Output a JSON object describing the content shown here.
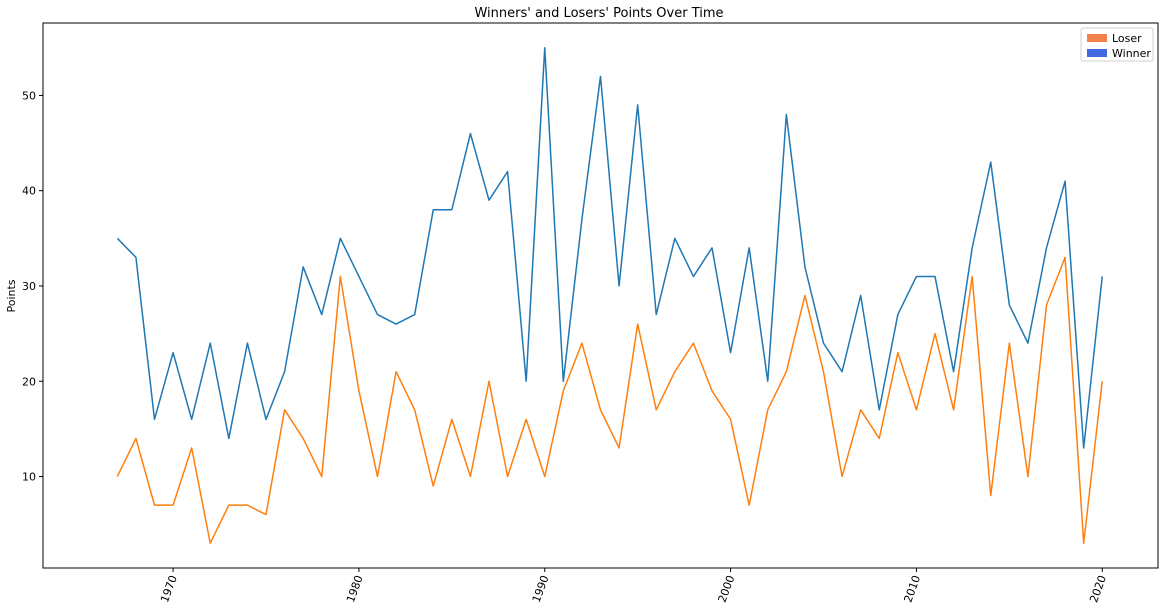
{
  "chart_data": {
    "type": "line",
    "title": "Winners' and Losers' Points Over Time",
    "xlabel": "",
    "ylabel": "Points",
    "xlim": [
      1963,
      2023
    ],
    "ylim": [
      0.4,
      57.6
    ],
    "x_ticks": [
      1970,
      1980,
      1990,
      2000,
      2010,
      2020
    ],
    "y_ticks": [
      10,
      20,
      30,
      40,
      50
    ],
    "grid": false,
    "legend_position": "top-right",
    "x": [
      1967,
      1968,
      1969,
      1970,
      1971,
      1972,
      1973,
      1974,
      1975,
      1976,
      1977,
      1978,
      1979,
      1980,
      1981,
      1982,
      1983,
      1984,
      1985,
      1986,
      1987,
      1988,
      1989,
      1990,
      1991,
      1992,
      1993,
      1994,
      1995,
      1996,
      1997,
      1998,
      1999,
      2000,
      2001,
      2002,
      2003,
      2004,
      2005,
      2006,
      2007,
      2008,
      2009,
      2010,
      2011,
      2012,
      2013,
      2014,
      2015,
      2016,
      2017,
      2018,
      2019,
      2020
    ],
    "series": [
      {
        "name": "Winner",
        "line_color": "#1f77b4",
        "legend_color": "#4169e1",
        "values": [
          35,
          33,
          16,
          23,
          16,
          24,
          14,
          24,
          16,
          21,
          32,
          27,
          35,
          31,
          27,
          26,
          27,
          38,
          38,
          46,
          39,
          42,
          20,
          55,
          20,
          37,
          52,
          30,
          49,
          27,
          35,
          31,
          34,
          23,
          34,
          20,
          48,
          32,
          24,
          21,
          29,
          17,
          27,
          31,
          31,
          21,
          34,
          43,
          28,
          24,
          34,
          41,
          13,
          31
        ]
      },
      {
        "name": "Loser",
        "line_color": "#ff7f0e",
        "legend_color": "#f4814d",
        "values": [
          10,
          14,
          7,
          7,
          13,
          3,
          7,
          7,
          6,
          17,
          14,
          10,
          31,
          19,
          10,
          21,
          17,
          9,
          16,
          10,
          20,
          10,
          16,
          10,
          19,
          24,
          17,
          13,
          26,
          17,
          21,
          24,
          19,
          16,
          7,
          17,
          21,
          29,
          21,
          10,
          17,
          14,
          23,
          17,
          25,
          17,
          31,
          8,
          24,
          10,
          28,
          33,
          3,
          20
        ]
      }
    ],
    "legend_order": [
      "Loser",
      "Winner"
    ]
  }
}
